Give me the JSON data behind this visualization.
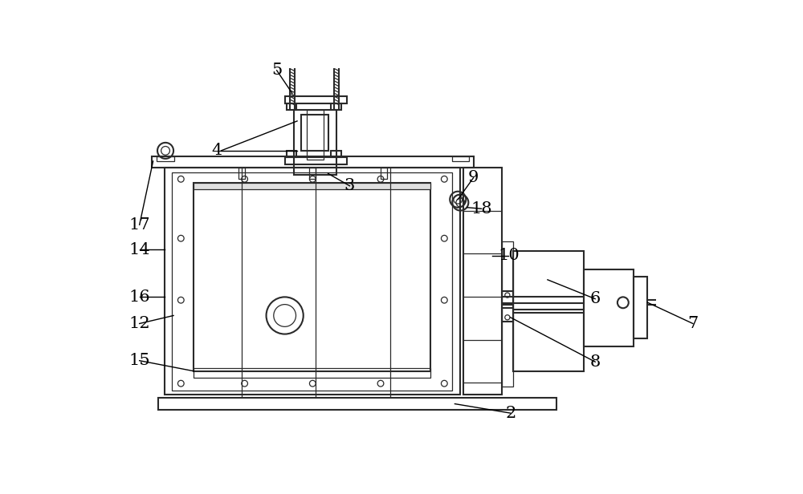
{
  "bg_color": "#ffffff",
  "lc": "#2a2a2a",
  "lw": 1.5,
  "lw_thin": 0.9,
  "lw_thick": 2.0
}
